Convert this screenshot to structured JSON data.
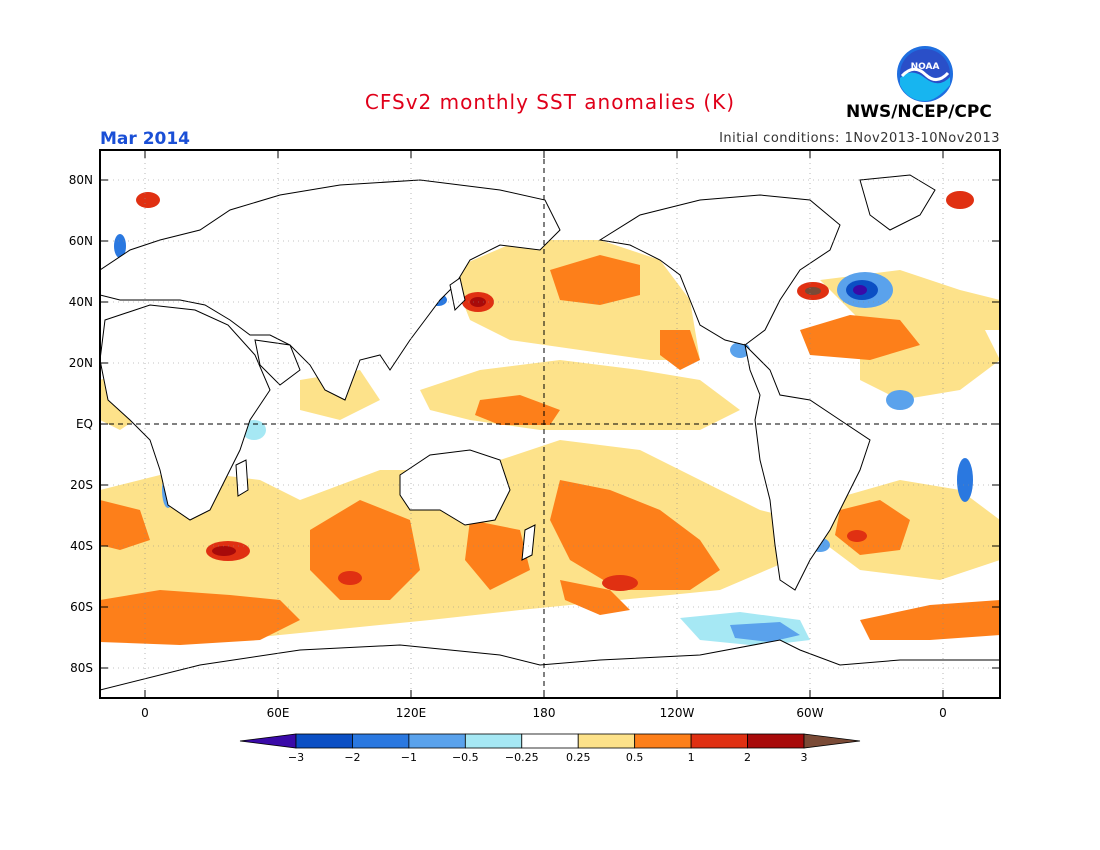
{
  "header": {
    "title": "CFSv2 monthly SST anomalies (K)",
    "period": "Mar 2014",
    "initial_conditions": "Initial conditions: 1Nov2013-10Nov2013",
    "agency": "NWS/NCEP/CPC",
    "logo_text": "NOAA"
  },
  "map": {
    "lat_labels": [
      "80N",
      "60N",
      "40N",
      "20N",
      "EQ",
      "20S",
      "40S",
      "60S",
      "80S"
    ],
    "lon_labels": [
      "0",
      "60E",
      "120E",
      "180",
      "120W",
      "60W",
      "0"
    ]
  },
  "colorbar": {
    "tick_labels": [
      "−3",
      "−2",
      "−1",
      "−0.5",
      "−0.25",
      "0.25",
      "0.5",
      "1",
      "2",
      "3"
    ],
    "colors": [
      "#3a0aa8",
      "#0b4fc4",
      "#2a78e0",
      "#5aa2ec",
      "#a6e8f4",
      "#ffffff",
      "#fde28a",
      "#fd7f1a",
      "#e03012",
      "#a80a0a",
      "#7a4a36"
    ]
  },
  "colors": {
    "title": "#e0001a",
    "period": "#1a4fd6",
    "land_outline": "#000000"
  }
}
